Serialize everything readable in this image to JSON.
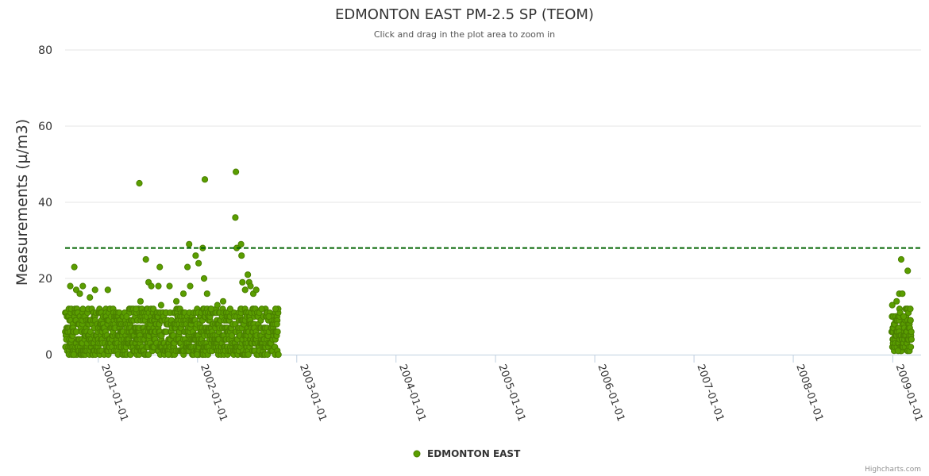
{
  "chart_data": {
    "type": "scatter",
    "title": "EDMONTON EAST PM-2.5 SP (TEOM)",
    "subtitle": "Click and drag in the plot area to zoom in",
    "ylabel": "Measurements (µ/m3)",
    "xlabel": "",
    "ylim": [
      0,
      80
    ],
    "y_ticks": [
      "0",
      "20",
      "40",
      "60",
      "80"
    ],
    "xlim": [
      "2000-09-01",
      "2009-04-15"
    ],
    "x_ticks": [
      "2001-01-01",
      "2002-01-01",
      "2003-01-01",
      "2004-01-01",
      "2005-01-01",
      "2006-01-01",
      "2007-01-01",
      "2008-01-01",
      "2009-01-01"
    ],
    "reference_line": {
      "value": 28,
      "color": "#006400",
      "style": "dashed"
    },
    "legend": [
      "EDMONTON EAST"
    ],
    "credit": "Highcharts.com",
    "colors": {
      "marker_fill": "#5a9e00",
      "marker_stroke": "#4a7f00",
      "grid": "#e6e6e6",
      "axis": "#c0d0e0"
    },
    "series": [
      {
        "name": "EDMONTON EAST",
        "periods": [
          {
            "start": "2000-09-01",
            "end": "2002-10-25",
            "typical_range": [
              0,
              12
            ]
          },
          {
            "start": "2008-12-28",
            "end": "2009-03-10",
            "typical_range": [
              1,
              12
            ]
          }
        ],
        "points": [
          [
            "2000-09-20",
            18
          ],
          [
            "2000-10-05",
            23
          ],
          [
            "2000-10-12",
            17
          ],
          [
            "2000-10-25",
            16
          ],
          [
            "2000-11-05",
            18
          ],
          [
            "2000-12-01",
            15
          ],
          [
            "2000-12-20",
            17
          ],
          [
            "2001-02-05",
            17
          ],
          [
            "2001-04-15",
            10
          ],
          [
            "2001-05-20",
            12
          ],
          [
            "2001-06-01",
            45
          ],
          [
            "2001-06-05",
            14
          ],
          [
            "2001-06-25",
            25
          ],
          [
            "2001-07-05",
            19
          ],
          [
            "2001-07-15",
            18
          ],
          [
            "2001-08-10",
            18
          ],
          [
            "2001-08-15",
            23
          ],
          [
            "2001-08-20",
            13
          ],
          [
            "2001-09-20",
            18
          ],
          [
            "2001-10-15",
            14
          ],
          [
            "2001-11-10",
            16
          ],
          [
            "2001-11-25",
            23
          ],
          [
            "2001-12-01",
            29
          ],
          [
            "2001-12-05",
            18
          ],
          [
            "2001-12-25",
            26
          ],
          [
            "2002-01-05",
            24
          ],
          [
            "2002-01-20",
            28
          ],
          [
            "2002-01-25",
            20
          ],
          [
            "2002-01-28",
            46
          ],
          [
            "2002-02-05",
            16
          ],
          [
            "2002-02-20",
            12
          ],
          [
            "2002-03-15",
            13
          ],
          [
            "2002-04-05",
            14
          ],
          [
            "2002-05-01",
            12
          ],
          [
            "2002-05-20",
            36
          ],
          [
            "2002-05-22",
            48
          ],
          [
            "2002-05-25",
            28
          ],
          [
            "2002-06-10",
            29
          ],
          [
            "2002-06-12",
            26
          ],
          [
            "2002-06-15",
            19
          ],
          [
            "2002-06-25",
            17
          ],
          [
            "2002-07-05",
            21
          ],
          [
            "2002-07-10",
            19
          ],
          [
            "2002-07-15",
            18
          ],
          [
            "2002-07-25",
            16
          ],
          [
            "2002-08-05",
            17
          ],
          [
            "2002-08-25",
            12
          ],
          [
            "2002-09-20",
            10
          ],
          [
            "2002-10-15",
            12
          ],
          [
            "2002-10-20",
            8
          ],
          [
            "2001-09-15",
            0
          ],
          [
            "2000-10-03",
            0
          ],
          [
            "2001-12-30",
            0
          ],
          [
            "2008-12-30",
            13
          ],
          [
            "2009-01-15",
            14
          ],
          [
            "2009-01-25",
            16
          ],
          [
            "2009-02-01",
            25
          ],
          [
            "2009-02-05",
            16
          ],
          [
            "2009-02-25",
            22
          ],
          [
            "2009-02-10",
            10
          ],
          [
            "2009-01-20",
            1
          ]
        ]
      }
    ]
  }
}
